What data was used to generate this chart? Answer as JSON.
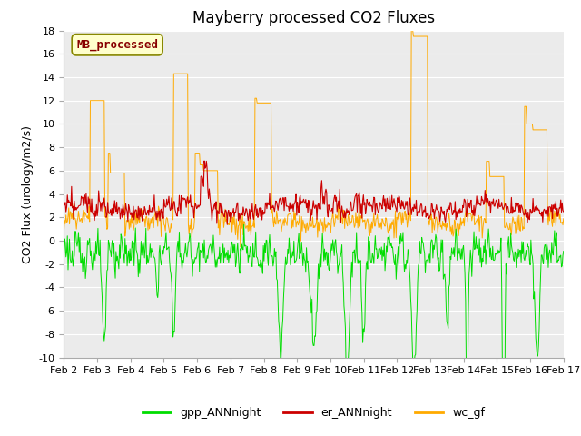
{
  "title": "Mayberry processed CO2 Fluxes",
  "ylabel": "CO2 Flux (urology/m2/s)",
  "xlabel": "",
  "ylim": [
    -10,
    18
  ],
  "yticks": [
    -10,
    -8,
    -6,
    -4,
    -2,
    0,
    2,
    4,
    6,
    8,
    10,
    12,
    14,
    16,
    18
  ],
  "xtick_labels": [
    "Feb 2",
    "Feb 3",
    "Feb 4",
    "Feb 5",
    "Feb 6",
    "Feb 7",
    "Feb 8",
    "Feb 9",
    "Feb 10",
    "Feb 11",
    "Feb 12",
    "Feb 13",
    "Feb 14",
    "Feb 15",
    "Feb 16",
    "Feb 17"
  ],
  "color_gpp": "#00dd00",
  "color_er": "#cc0000",
  "color_wc": "#ffaa00",
  "legend_label_gpp": "gpp_ANNnight",
  "legend_label_er": "er_ANNnight",
  "legend_label_wc": "wc_gf",
  "watermark_text": "MB_processed",
  "watermark_color": "#880000",
  "watermark_bg": "#ffffcc",
  "watermark_edge": "#888800",
  "bg_color": "#ffffff",
  "plot_bg_color": "#ebebeb",
  "title_fontsize": 12,
  "axis_label_fontsize": 9,
  "tick_fontsize": 8,
  "legend_fontsize": 9,
  "grid_color": "#ffffff",
  "n_points": 720
}
